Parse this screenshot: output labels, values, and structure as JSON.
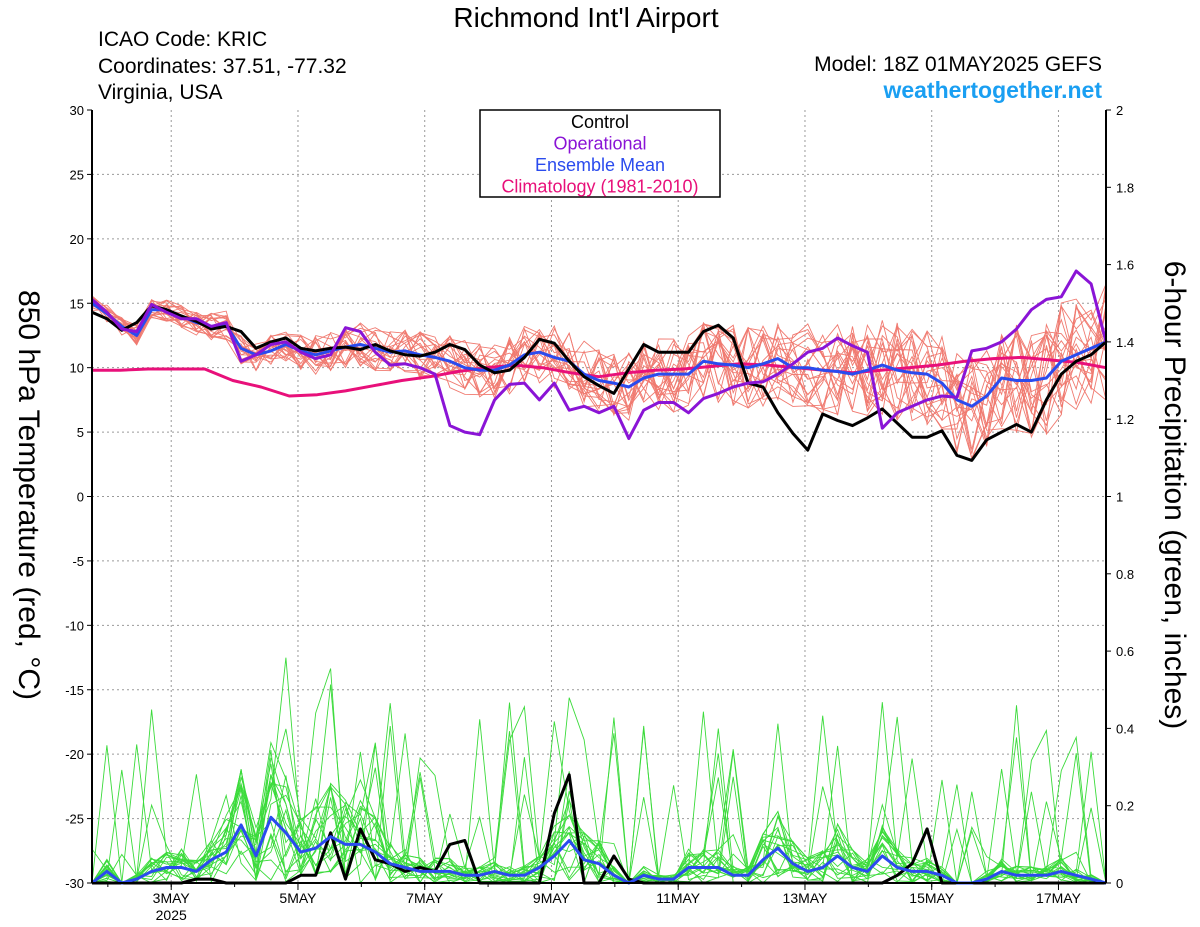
{
  "header": {
    "title": "Richmond Int'l Airport",
    "icao": "ICAO Code: KRIC",
    "coordinates": "Coordinates: 37.51, -77.32",
    "region": "Virginia, USA",
    "model": "Model: 18Z 01MAY2025 GEFS",
    "site": "weathertogether.net"
  },
  "chart_data": {
    "type": "line",
    "xlabel": "",
    "ylabel": "850 hPa Temperature (red, °C)",
    "y2label": "6-hour Precipitation (green, inches)",
    "ylim": [
      -30,
      30
    ],
    "y2lim": [
      0,
      2
    ],
    "yticks": [
      30,
      25,
      20,
      15,
      10,
      5,
      0,
      -5,
      -10,
      -15,
      -20,
      -25,
      -30
    ],
    "y2ticks": [
      2,
      1.8,
      1.6,
      1.4,
      1.2,
      1,
      0.8,
      0.6,
      0.4,
      0.2,
      0
    ],
    "x_start_day": 1.75,
    "x_end_day": 17.75,
    "x_unit": "day of May 2025",
    "xticks": [
      {
        "day": 3,
        "label": "3MAY"
      },
      {
        "day": 5,
        "label": "5MAY"
      },
      {
        "day": 7,
        "label": "7MAY"
      },
      {
        "day": 9,
        "label": "9MAY"
      },
      {
        "day": 11,
        "label": "11MAY"
      },
      {
        "day": 13,
        "label": "13MAY"
      },
      {
        "day": 15,
        "label": "15MAY"
      },
      {
        "day": 17,
        "label": "17MAY"
      }
    ],
    "year_label": "2025",
    "grid": true,
    "legend": {
      "position": "top-center",
      "items": [
        {
          "name": "Control",
          "color": "#000000"
        },
        {
          "name": "Operational",
          "color": "#8a14d6"
        },
        {
          "name": "Ensemble Mean",
          "color": "#2a4bee"
        },
        {
          "name": "Climatology (1981-2010)",
          "color": "#e8107a"
        }
      ]
    },
    "colors": {
      "member_temp": "#f07a70",
      "member_precip": "#3bdb3b"
    },
    "temperature_series": [
      {
        "name": "Control",
        "color": "#000000",
        "values": [
          14.3,
          13.8,
          12.9,
          13.5,
          14.8,
          14.5,
          14.0,
          13.6,
          13.0,
          13.2,
          12.8,
          11.5,
          12.0,
          12.3,
          11.5,
          11.3,
          11.5,
          11.6,
          11.4,
          11.8,
          11.3,
          11.0,
          10.9,
          11.2,
          11.8,
          11.4,
          10.2,
          9.6,
          9.8,
          10.8,
          12.2,
          11.9,
          10.5,
          9.3,
          8.6,
          8.0,
          9.9,
          11.8,
          11.2,
          11.2,
          11.2,
          12.8,
          13.3,
          12.3,
          8.8,
          8.5,
          6.5,
          4.9,
          3.6,
          6.4,
          5.9,
          5.5,
          6.1,
          6.8,
          5.7,
          4.6,
          4.6,
          5.1,
          3.2,
          2.8,
          4.4,
          5.0,
          5.6,
          5.0,
          7.5,
          9.5,
          10.5,
          11.0,
          12.0
        ]
      },
      {
        "name": "Operational",
        "color": "#8a14d6",
        "values": [
          15.3,
          14.3,
          13.0,
          12.8,
          14.9,
          14.3,
          13.8,
          13.8,
          13.2,
          13.5,
          10.5,
          11.0,
          11.8,
          12.0,
          11.2,
          10.7,
          11.0,
          13.1,
          12.8,
          11.2,
          10.2,
          10.3,
          10.0,
          9.5,
          5.5,
          5.0,
          4.8,
          7.5,
          8.7,
          8.8,
          7.5,
          8.8,
          6.7,
          7.0,
          6.5,
          7.0,
          4.5,
          6.7,
          7.3,
          7.3,
          6.5,
          7.6,
          8.0,
          8.5,
          8.8,
          8.9,
          9.5,
          10.3,
          11.2,
          11.5,
          12.3,
          11.7,
          11.2,
          5.3,
          6.5,
          7.0,
          7.5,
          7.8,
          7.7,
          11.3,
          11.5,
          12.0,
          13.0,
          14.5,
          15.3,
          15.5,
          17.5,
          16.5,
          12.0
        ]
      },
      {
        "name": "Ensemble Mean",
        "color": "#2a4bee",
        "values": [
          15.0,
          14.2,
          13.2,
          12.5,
          14.5,
          14.5,
          14.0,
          13.5,
          13.2,
          13.3,
          11.5,
          11.0,
          11.3,
          11.8,
          11.3,
          11.0,
          11.3,
          11.6,
          11.8,
          11.5,
          11.2,
          11.3,
          11.0,
          10.8,
          10.5,
          10.0,
          9.8,
          9.8,
          10.2,
          11.0,
          11.2,
          10.8,
          10.5,
          9.5,
          9.0,
          8.8,
          8.5,
          9.2,
          9.5,
          9.5,
          9.5,
          10.5,
          10.3,
          10.2,
          10.0,
          10.3,
          10.7,
          10.0,
          10.0,
          9.8,
          9.7,
          9.5,
          9.8,
          10.2,
          9.8,
          9.6,
          9.5,
          8.8,
          7.5,
          7.0,
          7.8,
          9.2,
          9.0,
          9.0,
          9.2,
          10.5,
          11.0,
          11.5,
          12.0
        ]
      },
      {
        "name": "Climatology (1981-2010)",
        "color": "#e8107a",
        "values": [
          9.8,
          9.8,
          9.9,
          9.9,
          9.9,
          9.0,
          8.5,
          7.8,
          7.9,
          8.2,
          8.6,
          9.0,
          9.3,
          9.7,
          10.0,
          10.2,
          10.0,
          9.6,
          9.3,
          9.6,
          9.8,
          9.9,
          10.1,
          10.3,
          10.2,
          10.0,
          9.8,
          9.6,
          9.8,
          10.0,
          10.2,
          10.5,
          10.7,
          10.8,
          10.6,
          10.4,
          10.0
        ]
      }
    ],
    "precip_series": [
      {
        "name": "Control",
        "color": "#000000",
        "values": [
          0,
          0,
          0,
          0,
          0,
          0,
          0,
          0.01,
          0.01,
          0,
          0,
          0,
          0,
          0,
          0.02,
          0.02,
          0.13,
          0.01,
          0.14,
          0.06,
          0.05,
          0.03,
          0.04,
          0.03,
          0.1,
          0.11,
          0,
          0,
          0,
          0,
          0,
          0.18,
          0.28,
          0,
          0,
          0.07,
          0.01,
          0,
          0,
          0,
          0,
          0,
          0,
          0,
          0,
          0,
          0,
          0,
          0,
          0,
          0,
          0,
          0,
          0,
          0.02,
          0.05,
          0.14,
          0,
          0,
          0,
          0,
          0,
          0,
          0,
          0,
          0,
          0,
          0,
          0
        ]
      },
      {
        "name": "Ensemble Mean",
        "color": "#2a4bee",
        "values": [
          0,
          0.03,
          0,
          0.01,
          0.03,
          0.04,
          0.04,
          0.03,
          0.06,
          0.08,
          0.15,
          0.07,
          0.17,
          0.13,
          0.08,
          0.09,
          0.12,
          0.1,
          0.1,
          0.08,
          0.05,
          0.04,
          0.03,
          0.03,
          0.03,
          0.02,
          0.02,
          0.03,
          0.02,
          0.02,
          0.04,
          0.07,
          0.11,
          0.06,
          0.05,
          0.02,
          0,
          0.02,
          0.01,
          0.01,
          0.04,
          0.04,
          0.04,
          0.02,
          0.02,
          0.06,
          0.09,
          0.05,
          0.03,
          0.04,
          0.07,
          0.04,
          0.03,
          0.07,
          0.04,
          0.03,
          0.03,
          0.02,
          0,
          0,
          0.01,
          0.03,
          0.02,
          0.02,
          0.02,
          0.03,
          0.02,
          0.01,
          0
        ]
      }
    ]
  }
}
